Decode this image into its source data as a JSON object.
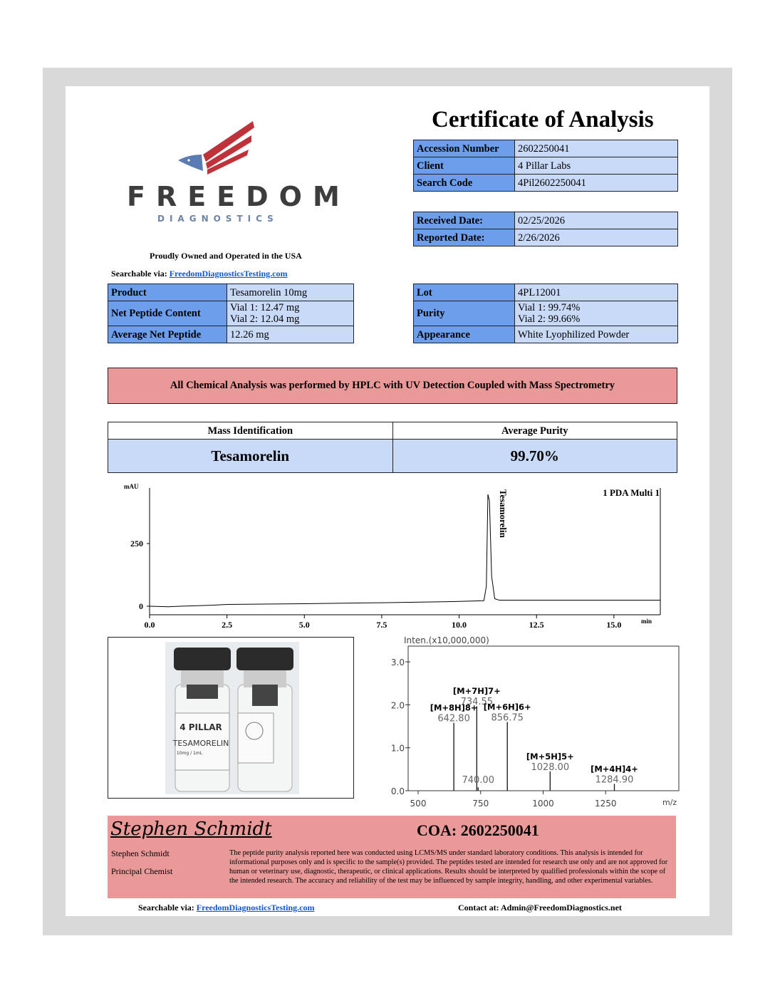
{
  "header": {
    "title": "Certificate of Analysis"
  },
  "logo": {
    "brand": "FREEDOM",
    "sub": "DIAGNOSTICS",
    "tagline": "Proudly Owned and Operated in the USA"
  },
  "search": {
    "label": "Searchable via:",
    "url": "FreedomDiagnosticsTesting.com"
  },
  "ids": [
    {
      "k": "Accession Number",
      "v": "2602250041"
    },
    {
      "k": "Client",
      "v": "4 Pillar Labs"
    },
    {
      "k": "Search Code",
      "v": "4Pil2602250041"
    }
  ],
  "dates": [
    {
      "k": "Received Date:",
      "v": "02/25/2026"
    },
    {
      "k": "Reported Date:",
      "v": "2/26/2026"
    }
  ],
  "product": [
    {
      "k": "Product",
      "v": [
        "Tesamorelin 10mg"
      ]
    },
    {
      "k": "Net Peptide Content",
      "v": [
        "Vial 1: 12.47 mg",
        "Vial 2: 12.04 mg"
      ]
    },
    {
      "k": "Average Net Peptide",
      "v": [
        "12.26 mg"
      ]
    }
  ],
  "lot": [
    {
      "k": "Lot",
      "v": [
        "4PL12001"
      ]
    },
    {
      "k": "Purity",
      "v": [
        "Vial 1: 99.74%",
        "Vial 2: 99.66%"
      ]
    },
    {
      "k": "Appearance",
      "v": [
        "White Lyophilized Powder"
      ]
    }
  ],
  "method_banner": "All Chemical Analysis was performed by HPLC with UV Detection Coupled with Mass Spectrometry",
  "summary": {
    "h1": "Mass Identification",
    "h2": "Average Purity",
    "v1": "Tesamorelin",
    "v2": "99.70%"
  },
  "colors": {
    "header_cell": "#6d9eeb",
    "value_cell": "#c9daf8",
    "banner": "#ea9999",
    "background": "#d9d9d9",
    "link": "#1155cc"
  },
  "chart_data": [
    {
      "type": "line",
      "title": "1 PDA Multi 1",
      "ylabel": "mAU",
      "xlabel": "min",
      "xlim": [
        0,
        16.5
      ],
      "ylim": [
        -30,
        460
      ],
      "xticks": [
        "0.0",
        "2.5",
        "5.0",
        "7.5",
        "10.0",
        "12.5",
        "15.0"
      ],
      "yticks": [
        "0",
        "250"
      ],
      "peak_label": "Tesamorelin",
      "points": [
        [
          0,
          0
        ],
        [
          0.6,
          -2
        ],
        [
          1,
          0
        ],
        [
          2,
          4
        ],
        [
          2.5,
          7
        ],
        [
          4,
          9
        ],
        [
          5,
          10
        ],
        [
          7.5,
          14
        ],
        [
          10,
          19
        ],
        [
          10.8,
          22
        ],
        [
          10.88,
          80
        ],
        [
          10.93,
          446
        ],
        [
          10.98,
          420
        ],
        [
          11.05,
          120
        ],
        [
          11.15,
          30
        ],
        [
          11.3,
          24
        ],
        [
          13,
          24
        ],
        [
          16.5,
          24
        ]
      ],
      "grid": false
    },
    {
      "type": "bar",
      "ylabel": "Inten.(x10,000,000)",
      "xlabel": "m/z",
      "xlim": [
        460,
        1800
      ],
      "ylim": [
        0,
        3.35
      ],
      "xticks": [
        "500",
        "750",
        "1000",
        "1250"
      ],
      "yticks": [
        "0.0",
        "1.0",
        "2.0",
        "3.0"
      ],
      "peaks": [
        {
          "mz": 642.8,
          "intensity": 1.58,
          "ion": "[M+8H]8+",
          "label": "642.80"
        },
        {
          "mz": 734.55,
          "intensity": 1.97,
          "ion": "[M+7H]7+",
          "label": "734.55"
        },
        {
          "mz": 740.0,
          "intensity": 0.08,
          "ion": "",
          "label": "740.00"
        },
        {
          "mz": 856.75,
          "intensity": 1.6,
          "ion": "[M+6H]6+",
          "label": "856.75"
        },
        {
          "mz": 1028.0,
          "intensity": 0.45,
          "ion": "[M+5H]5+",
          "label": "1028.00"
        },
        {
          "mz": 1284.9,
          "intensity": 0.16,
          "ion": "[M+4H]4+",
          "label": "1284.90"
        }
      ]
    }
  ],
  "vials": {
    "brand": "4 PILLAR",
    "product": "TESAMORELIN",
    "dose": "10mg / 1mL"
  },
  "footer": {
    "signature": "Stephen Schmidt",
    "coa": "COA: 2602250041",
    "name": "Stephen Schmidt",
    "role": "Principal Chemist",
    "disclaimer": "The peptide purity analysis reported here was conducted using LCMS/MS under standard laboratory conditions. This analysis is intended for informational purposes only and is specific to the sample(s) provided. The peptides tested are intended for research use only and are not approved for human or veterinary use, diagnostic, therapeutic, or clinical applications. Results should be interpreted by qualified professionals within the scope of the intended research. The accuracy and reliability of the test may be influenced by sample integrity, handling, and other experimental variables.",
    "search_label": "Searchable via:",
    "search_url": "FreedomDiagnosticsTesting.com",
    "contact": "Contact at: Admin@FreedomDiagnostics.net"
  }
}
